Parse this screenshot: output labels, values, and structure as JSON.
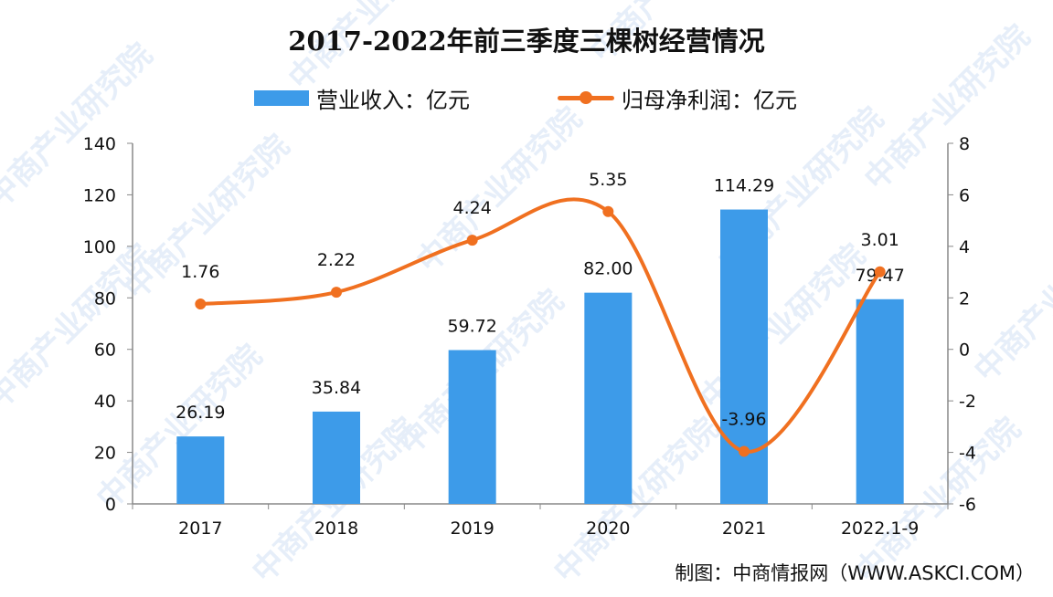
{
  "watermark": "中商产业研究院",
  "footer": "制图：中商情报网（WWW.ASKCI.COM）",
  "colors": {
    "bar": "#3d9be9",
    "line": "#f07020",
    "axis": "#888888"
  },
  "chart_data": {
    "type": "bar+line",
    "title": "2017-2022年前三季度三棵树经营情况",
    "categories": [
      "2017",
      "2018",
      "2019",
      "2020",
      "2021",
      "2022.1-9"
    ],
    "series": [
      {
        "name": "营业收入：亿元",
        "type": "bar",
        "axis": "left",
        "values": [
          26.19,
          35.84,
          59.72,
          82.0,
          114.29,
          79.47
        ],
        "labels": [
          "26.19",
          "35.84",
          "59.72",
          "82.00",
          "114.29",
          "79.47"
        ]
      },
      {
        "name": "归母净利润：亿元",
        "type": "line",
        "smooth": true,
        "axis": "right",
        "values": [
          1.76,
          2.22,
          4.24,
          5.35,
          -3.96,
          3.01
        ],
        "labels": [
          "1.76",
          "2.22",
          "4.24",
          "5.35",
          "-3.96",
          "3.01"
        ]
      }
    ],
    "y_left": {
      "range": [
        0,
        140
      ],
      "ticks": [
        "0",
        "20",
        "40",
        "60",
        "80",
        "100",
        "120",
        "140"
      ]
    },
    "y_right": {
      "range": [
        -6,
        8
      ],
      "ticks": [
        "-6",
        "-4",
        "-2",
        "0",
        "2",
        "4",
        "6",
        "8"
      ]
    },
    "grid": false,
    "legend": "top"
  }
}
